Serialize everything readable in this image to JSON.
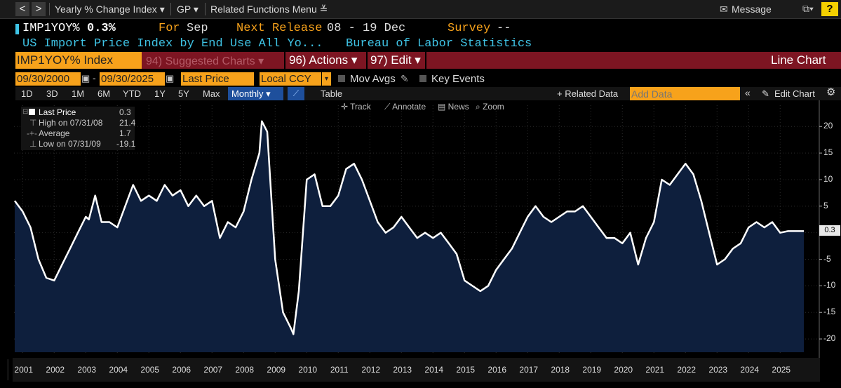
{
  "topbar": {
    "back_label": "<",
    "forward_label": ">",
    "function_menu": "Yearly % Change Index ▾",
    "gp_menu": "GP ▾",
    "related_menu": "Related Functions Menu ≚",
    "message_label": "Message",
    "help_label": "?"
  },
  "header": {
    "ticker": "IMP1YOY%",
    "value": "0.3%",
    "for_label": "For",
    "for_value": "Sep",
    "next_release_label": "Next Release",
    "next_release_value": "08 - 19 Dec",
    "survey_label": "Survey",
    "survey_value": "--",
    "description": "US Import Price Index by End Use All Yo...",
    "source": "Bureau of Labor Statistics"
  },
  "action_bar": {
    "security": "IMP1YOY% Index",
    "suggested": "94) Suggested Charts ▾",
    "actions": "96) Actions ▾",
    "edit": "97) Edit ▾",
    "chart_type": "Line Chart"
  },
  "settings": {
    "start_date": "09/30/2000",
    "end_date": "09/30/2025",
    "field": "Last Price",
    "currency": "Local CCY",
    "mov_avgs": "Mov Avgs",
    "key_events": "Key Events"
  },
  "periods": {
    "items": [
      "1D",
      "3D",
      "1M",
      "6M",
      "YTD",
      "1Y",
      "5Y",
      "Max"
    ],
    "frequency": "Monthly ▾",
    "table": "Table",
    "related_data": "+ Related Data",
    "add_data_placeholder": "Add Data",
    "edit_chart": "Edit Chart"
  },
  "chart_tools": {
    "track": "Track",
    "annotate": "Annotate",
    "news": "News",
    "zoom": "Zoom"
  },
  "legend": {
    "last_label": "Last Price",
    "last_value": "0.3",
    "high_label": "High on 07/31/08",
    "high_value": "21.4",
    "avg_label": "Average",
    "avg_value": "1.7",
    "low_label": "Low on 07/31/09",
    "low_value": "-19.1"
  },
  "colors": {
    "accent_orange": "#f7a21b",
    "red_bar": "#7d1522",
    "line": "#ffffff",
    "fill": "#0e1f3d",
    "cyan_text": "#3fc4e6"
  },
  "chart_data": {
    "type": "area",
    "title": "IMP1YOY% Index",
    "ylim": [
      -22.5,
      24
    ],
    "yticks": [
      20,
      15,
      10,
      5,
      0,
      -5,
      -10,
      -15,
      -20
    ],
    "last_value_label": "0.3",
    "x_labels": [
      "2001",
      "2002",
      "2003",
      "2004",
      "2005",
      "2006",
      "2007",
      "2008",
      "2009",
      "2010",
      "2011",
      "2012",
      "2013",
      "2014",
      "2015",
      "2016",
      "2017",
      "2018",
      "2019",
      "2020",
      "2021",
      "2022",
      "2023",
      "2024",
      "2025"
    ],
    "x": [
      2000.75,
      2001.0,
      2001.25,
      2001.5,
      2001.75,
      2002.0,
      2002.25,
      2002.5,
      2002.75,
      2003.0,
      2003.1,
      2003.3,
      2003.5,
      2003.75,
      2004.0,
      2004.25,
      2004.5,
      2004.75,
      2005.0,
      2005.25,
      2005.5,
      2005.75,
      2006.0,
      2006.25,
      2006.5,
      2006.75,
      2007.0,
      2007.25,
      2007.5,
      2007.75,
      2008.0,
      2008.25,
      2008.5,
      2008.58,
      2008.75,
      2009.0,
      2009.25,
      2009.5,
      2009.58,
      2009.75,
      2010.0,
      2010.25,
      2010.5,
      2010.75,
      2011.0,
      2011.25,
      2011.5,
      2011.75,
      2012.0,
      2012.25,
      2012.5,
      2012.75,
      2013.0,
      2013.25,
      2013.5,
      2013.75,
      2014.0,
      2014.25,
      2014.5,
      2014.75,
      2015.0,
      2015.25,
      2015.5,
      2015.75,
      2016.0,
      2016.25,
      2016.5,
      2016.75,
      2017.0,
      2017.25,
      2017.5,
      2017.75,
      2018.0,
      2018.25,
      2018.5,
      2018.75,
      2019.0,
      2019.25,
      2019.5,
      2019.75,
      2020.0,
      2020.25,
      2020.5,
      2020.75,
      2021.0,
      2021.25,
      2021.5,
      2021.75,
      2022.0,
      2022.25,
      2022.5,
      2022.75,
      2023.0,
      2023.25,
      2023.5,
      2023.75,
      2024.0,
      2024.25,
      2024.5,
      2024.75,
      2025.0,
      2025.25,
      2025.5,
      2025.75
    ],
    "values": [
      6,
      4,
      1,
      -5,
      -8.5,
      -9,
      -6,
      -3,
      0,
      3,
      2.5,
      7,
      2,
      2,
      1,
      5,
      9,
      6,
      7,
      6,
      9,
      7,
      8,
      5,
      7,
      5,
      6,
      -1,
      2,
      1,
      4,
      10,
      15,
      21,
      19,
      -5,
      -15,
      -18,
      -19.1,
      -11,
      10,
      11,
      5,
      5,
      7,
      12,
      13,
      10,
      6,
      2,
      0,
      1,
      3,
      1,
      -1,
      0,
      -1,
      0,
      -2,
      -4,
      -9,
      -10,
      -11,
      -10,
      -7,
      -5,
      -3,
      0,
      3,
      5,
      3,
      2,
      3,
      4,
      4,
      5,
      3,
      1,
      -1,
      -1,
      -2,
      0,
      -6,
      -1,
      2,
      10,
      9,
      11,
      13,
      11,
      6,
      0,
      -6,
      -5,
      -3,
      -2,
      1,
      2,
      1,
      2,
      0,
      0.3,
      0.3,
      0.3
    ]
  }
}
